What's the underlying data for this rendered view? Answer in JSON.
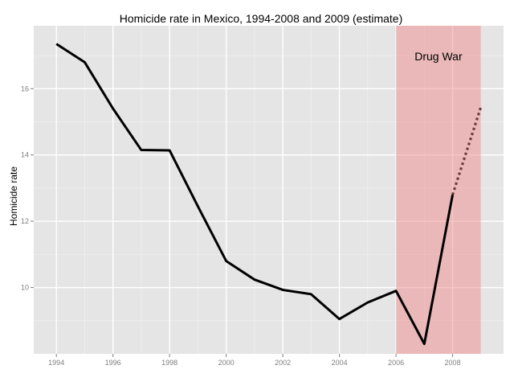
{
  "chart_data": {
    "type": "line",
    "title": "Homicide rate in Mexico, 1994-2008 and 2009 (estimate)",
    "xlabel": "",
    "ylabel": "Homicide rate",
    "xlim": [
      1993.2,
      2009.8
    ],
    "ylim": [
      8.0,
      17.9
    ],
    "x_ticks": [
      1994,
      1996,
      1998,
      2000,
      2002,
      2004,
      2006,
      2008
    ],
    "y_ticks": [
      10,
      12,
      14,
      16
    ],
    "grid": true,
    "series": [
      {
        "style": "solid",
        "color": "#000000",
        "x": [
          1994,
          1995,
          1996,
          1997,
          1998,
          1999,
          2000,
          2001,
          2002,
          2003,
          2004,
          2005,
          2006,
          2007,
          2008
        ],
        "y": [
          17.35,
          16.8,
          15.4,
          14.15,
          14.14,
          12.45,
          10.8,
          10.24,
          9.93,
          9.8,
          9.05,
          9.55,
          9.9,
          8.3,
          12.8
        ]
      },
      {
        "style": "dotted",
        "color": "#6b3a3a",
        "x": [
          2008,
          2009
        ],
        "y": [
          12.8,
          15.45
        ]
      }
    ],
    "shaded_region": {
      "x_start": 2006,
      "x_end": 2009,
      "color": "#f08080",
      "label": "Drug War"
    },
    "colors": {
      "panel_background": "#e5e5e5",
      "gridline": "#ffffff"
    }
  }
}
